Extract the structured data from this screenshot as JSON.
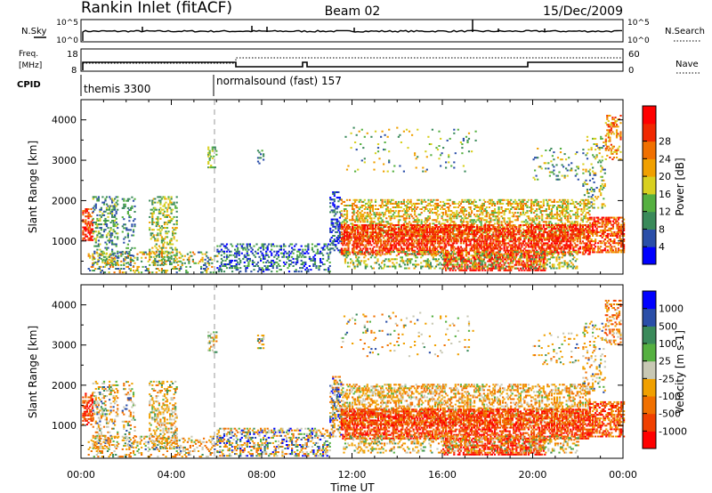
{
  "header": {
    "station": "Rankin Inlet (fitACF)",
    "beam": "Beam 02",
    "date": "15/Dec/2009"
  },
  "nsky_panel": {
    "left_label": "N.Sky",
    "left_ticks": [
      "10^5",
      "10^0"
    ],
    "right_label": "N.Search",
    "right_ticks": [
      "10^5",
      "10^0"
    ]
  },
  "freq_panel": {
    "left_label_line1": "Freq.",
    "left_label_line2": "[MHz]",
    "left_ticks": [
      "18",
      "8"
    ],
    "right_label": "Nave",
    "right_ticks": [
      "60",
      "0"
    ]
  },
  "cpid_panel": {
    "label": "CPID",
    "modes": [
      {
        "name": "themis 3300",
        "start_hour": 0
      },
      {
        "name": "normalsound (fast) 157",
        "start_hour": 6
      }
    ]
  },
  "colors": {
    "power_scale": [
      "#0000ff",
      "#2a4ea8",
      "#3a8a5a",
      "#55b040",
      "#d8d020",
      "#f0a000",
      "#f07000",
      "#f02800",
      "#ff0000"
    ],
    "velocity_scale": [
      "#ff0000",
      "#f04000",
      "#f07000",
      "#f0a000",
      "#c8c8b4",
      "#55b040",
      "#3a8a5a",
      "#2a4ea8",
      "#0000ff"
    ]
  },
  "chart_data": [
    {
      "type": "heatmap",
      "name": "power",
      "ylabel": "Slant Range [km]",
      "yticks": [
        "1000",
        "2000",
        "3000",
        "4000"
      ],
      "ylim": [
        180,
        4500
      ],
      "colorbar_label": "Power [dB]",
      "colorbar_ticks": [
        "4",
        "8",
        "12",
        "16",
        "20",
        "24",
        "28"
      ],
      "colorbar_range": [
        0,
        30
      ]
    },
    {
      "type": "heatmap",
      "name": "velocity",
      "ylabel": "Slant Range [km]",
      "yticks": [
        "1000",
        "2000",
        "3000",
        "4000"
      ],
      "ylim": [
        180,
        4500
      ],
      "colorbar_label": "Velocity [m s-1]",
      "colorbar_ticks": [
        "-1000",
        "-500",
        "-100",
        "-25",
        "25",
        "100",
        "500",
        "1000"
      ]
    }
  ],
  "xaxis": {
    "label": "Time UT",
    "ticks": [
      "00:00",
      "04:00",
      "08:00",
      "12:00",
      "16:00",
      "20:00",
      "00:00"
    ],
    "range_hours": [
      0,
      24
    ]
  }
}
